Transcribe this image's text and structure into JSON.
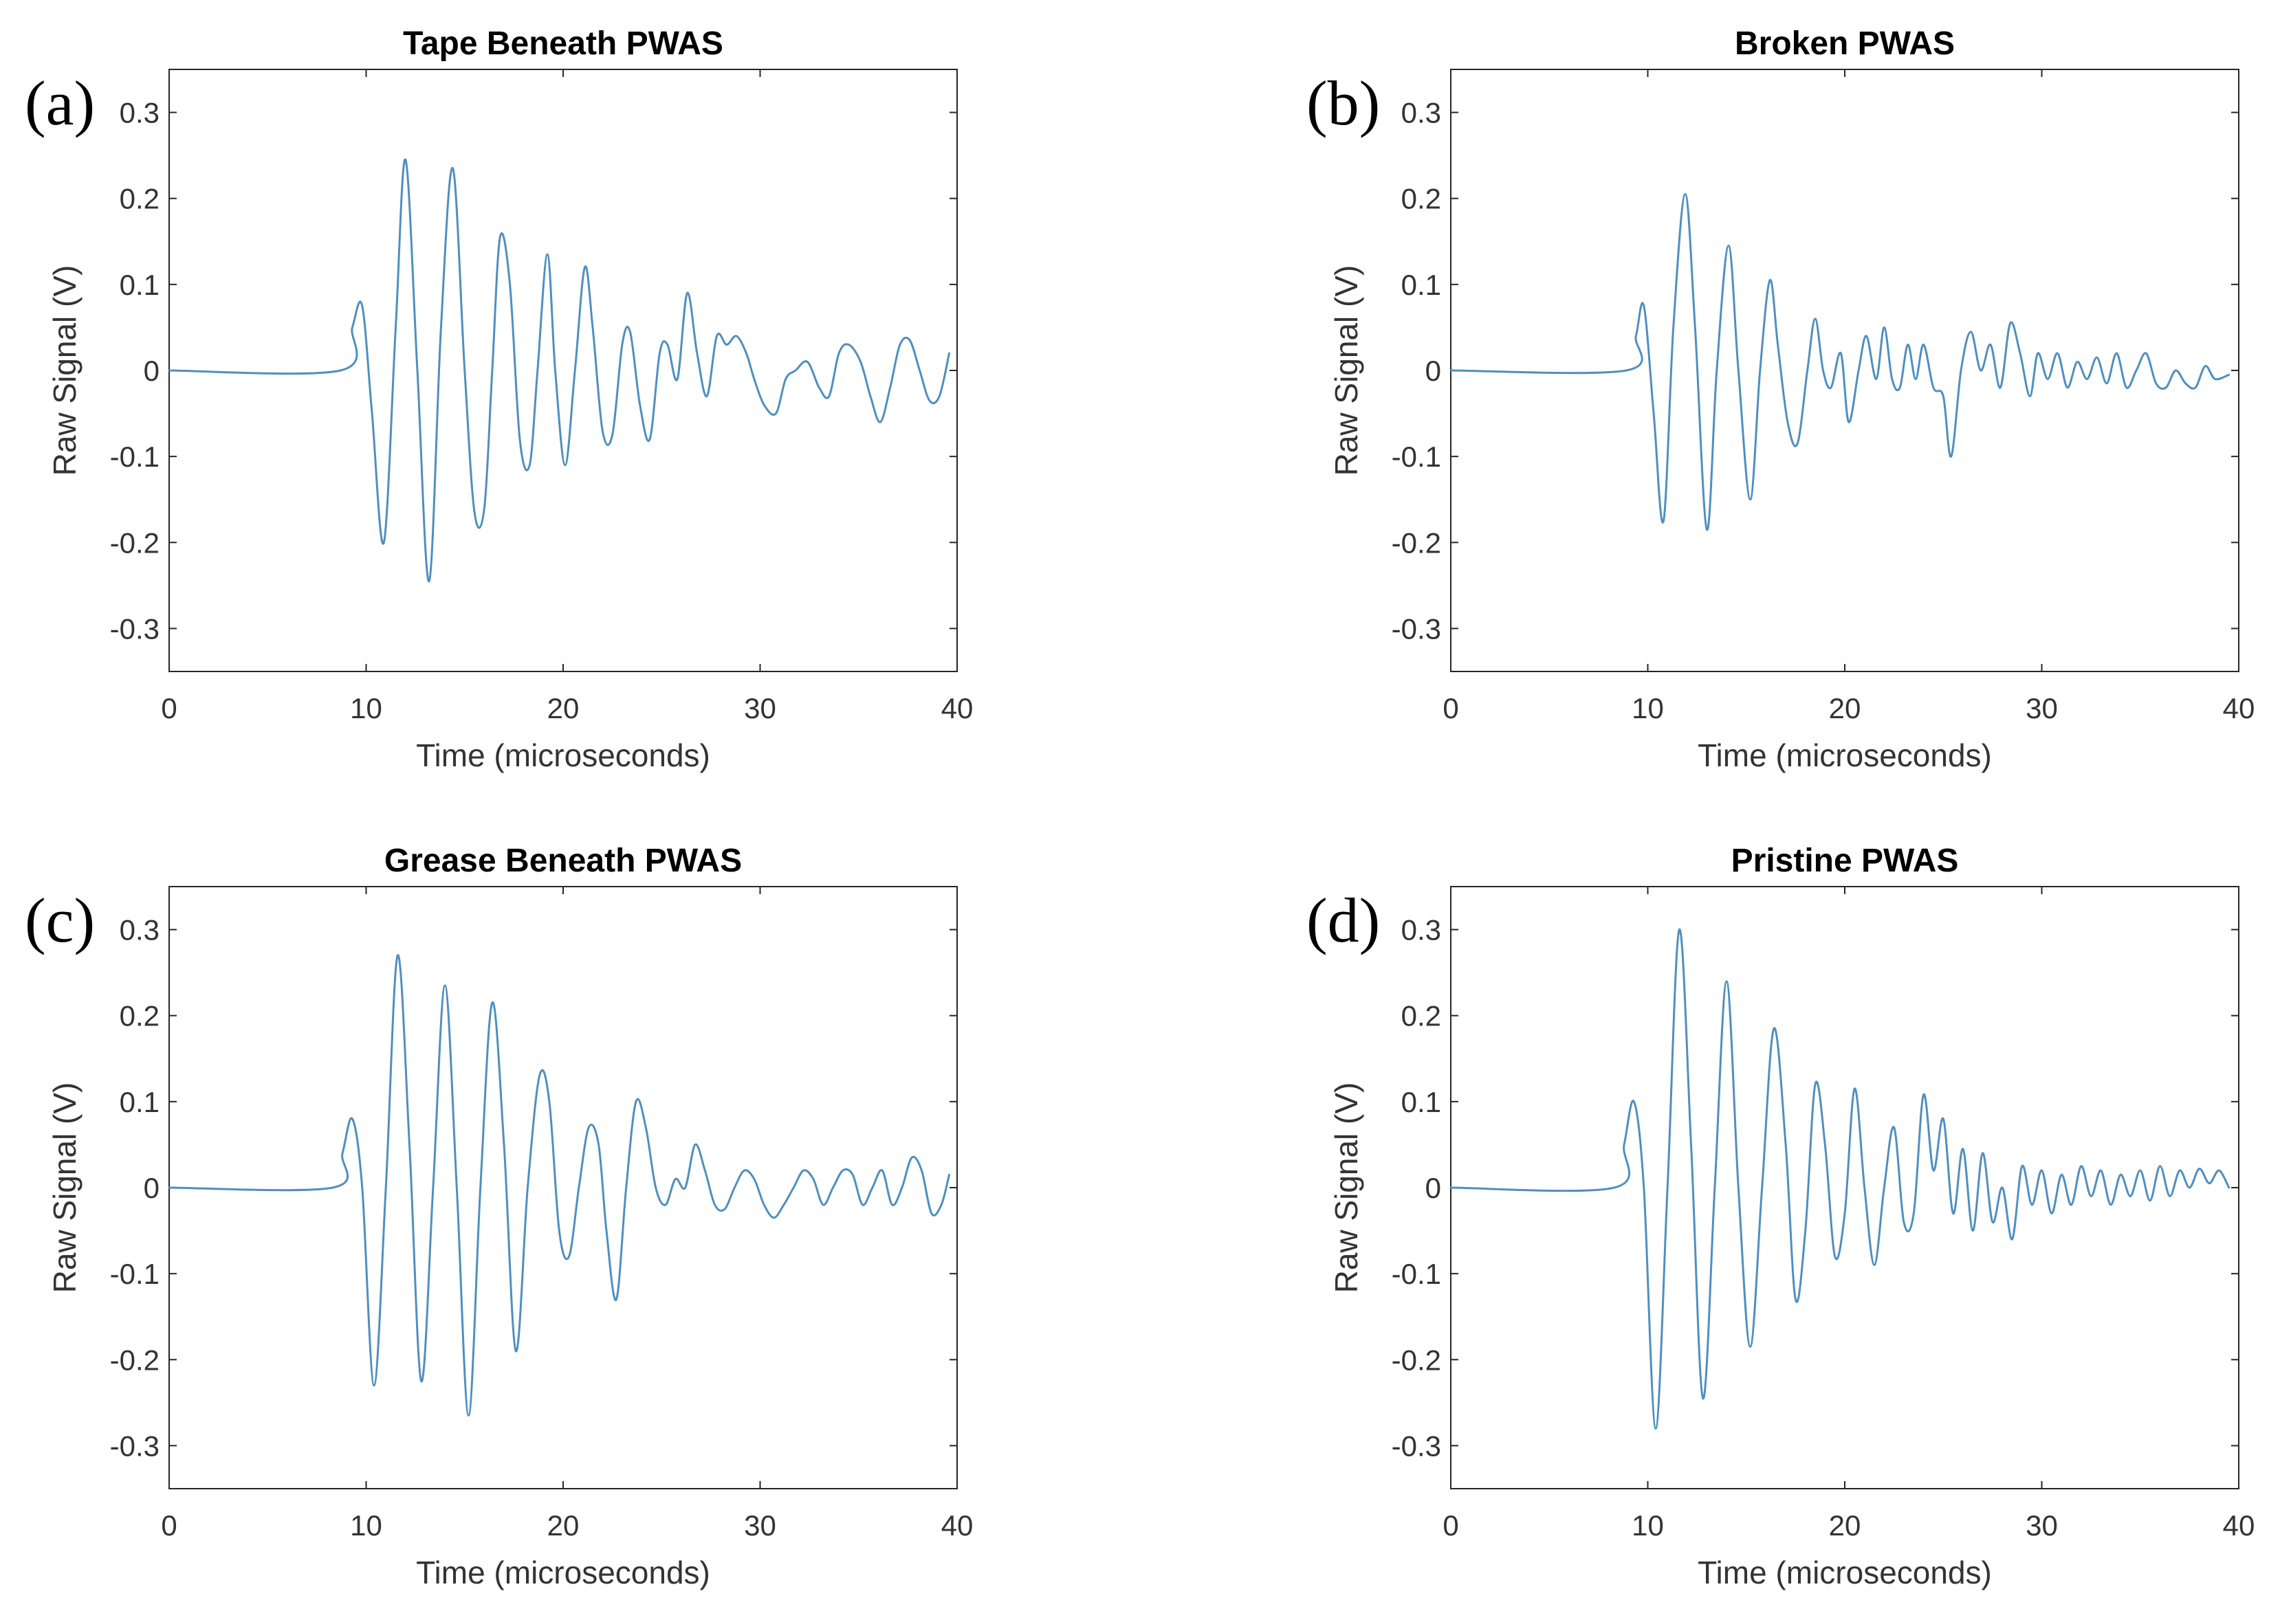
{
  "figure": {
    "colors": {
      "signal": "#4f8fbf",
      "axis": "#262626",
      "text": "#333333",
      "title": "#000000",
      "letter": "#000000"
    }
  },
  "chart_data": [
    {
      "type": "line",
      "panel_label": "(a)",
      "title": "Tape Beneath PWAS",
      "xlabel": "Time (microseconds)",
      "ylabel": "Raw Signal (V)",
      "xlim": [
        0,
        40
      ],
      "ylim": [
        -0.35,
        0.35
      ],
      "x_tick_labels": [
        "0",
        "10",
        "20",
        "30",
        "40"
      ],
      "y_tick_labels": [
        "0.3",
        "0.2",
        "0.1",
        "0",
        "-0.1",
        "-0.2",
        "-0.3"
      ],
      "grid": false,
      "series": [
        {
          "name": "Raw Signal",
          "x": [
            0,
            8.7,
            9.3,
            9.8,
            10.3,
            10.9,
            11.5,
            12.0,
            12.6,
            13.2,
            13.8,
            14.4,
            15.0,
            15.5,
            16.0,
            16.4,
            16.8,
            17.3,
            17.8,
            18.3,
            18.7,
            19.2,
            19.6,
            20.1,
            20.6,
            21.1,
            21.5,
            22.0,
            22.5,
            23.0,
            23.4,
            23.9,
            24.4,
            24.9,
            25.3,
            25.8,
            26.3,
            26.8,
            27.3,
            27.8,
            28.3,
            28.8,
            29.3,
            29.7,
            30.2,
            30.8,
            31.3,
            31.8,
            32.4,
            33.0,
            33.5,
            34.0,
            34.5,
            35.1,
            35.6,
            36.1,
            36.6,
            37.1,
            37.6,
            38.1,
            38.6,
            39.1,
            39.6
          ],
          "y": [
            0.0,
            0.0,
            0.05,
            0.075,
            -0.05,
            -0.2,
            0.05,
            0.245,
            0.0,
            -0.245,
            0.05,
            0.235,
            0.0,
            -0.165,
            -0.16,
            0.0,
            0.155,
            0.1,
            -0.08,
            -0.11,
            0.0,
            0.135,
            0.0,
            -0.11,
            0.0,
            0.12,
            0.05,
            -0.07,
            -0.075,
            0.03,
            0.045,
            -0.04,
            -0.08,
            0.02,
            0.03,
            -0.01,
            0.09,
            0.02,
            -0.03,
            0.04,
            0.03,
            0.04,
            0.02,
            -0.01,
            -0.04,
            -0.05,
            -0.01,
            0.0,
            0.01,
            -0.02,
            -0.03,
            0.02,
            0.03,
            0.01,
            -0.03,
            -0.06,
            -0.02,
            0.03,
            0.035,
            0.0,
            -0.035,
            -0.03,
            0.02
          ]
        }
      ]
    },
    {
      "type": "line",
      "panel_label": "(b)",
      "title": "Broken PWAS",
      "xlabel": "Time (microseconds)",
      "ylabel": "Raw Signal (V)",
      "xlim": [
        0,
        40
      ],
      "ylim": [
        -0.35,
        0.35
      ],
      "x_tick_labels": [
        "0",
        "10",
        "20",
        "30",
        "40"
      ],
      "y_tick_labels": [
        "0.3",
        "0.2",
        "0.1",
        "0",
        "-0.1",
        "-0.2",
        "-0.3"
      ],
      "grid": false,
      "series": [
        {
          "name": "Raw Signal",
          "x": [
            0,
            8.9,
            9.4,
            9.8,
            10.3,
            10.8,
            11.3,
            11.9,
            12.4,
            13.0,
            13.5,
            14.1,
            14.6,
            15.2,
            15.7,
            16.2,
            16.6,
            17.1,
            17.6,
            18.1,
            18.5,
            18.9,
            19.3,
            19.8,
            20.2,
            20.7,
            21.1,
            21.6,
            22.0,
            22.4,
            22.8,
            23.2,
            23.6,
            24.0,
            24.5,
            25.0,
            25.4,
            25.9,
            26.4,
            26.9,
            27.4,
            27.9,
            28.4,
            28.9,
            29.4,
            29.8,
            30.3,
            30.8,
            31.3,
            31.8,
            32.3,
            32.8,
            33.3,
            33.8,
            34.3,
            34.8,
            35.3,
            35.8,
            36.3,
            36.8,
            37.3,
            37.8,
            38.3,
            38.8,
            39.5
          ],
          "y": [
            0.0,
            0.0,
            0.04,
            0.075,
            -0.05,
            -0.175,
            0.05,
            0.205,
            0.05,
            -0.185,
            0.0,
            0.145,
            0.0,
            -0.15,
            0.0,
            0.105,
            0.03,
            -0.06,
            -0.085,
            0.0,
            0.06,
            0.0,
            -0.02,
            0.02,
            -0.06,
            0.0,
            0.04,
            -0.01,
            0.05,
            -0.01,
            -0.02,
            0.03,
            -0.01,
            0.03,
            -0.02,
            -0.03,
            -0.1,
            0.0,
            0.045,
            0.0,
            0.03,
            -0.02,
            0.055,
            0.02,
            -0.03,
            0.02,
            -0.01,
            0.02,
            -0.02,
            0.01,
            -0.01,
            0.015,
            -0.015,
            0.02,
            -0.02,
            0.0,
            0.02,
            -0.015,
            -0.02,
            0.0,
            -0.015,
            -0.02,
            0.005,
            -0.01,
            -0.005
          ]
        }
      ]
    },
    {
      "type": "line",
      "panel_label": "(c)",
      "title": "Grease Beneath PWAS",
      "xlabel": "Time (microseconds)",
      "ylabel": "Raw Signal (V)",
      "xlim": [
        0,
        40
      ],
      "ylim": [
        -0.35,
        0.35
      ],
      "x_tick_labels": [
        "0",
        "10",
        "20",
        "30",
        "40"
      ],
      "y_tick_labels": [
        "0.3",
        "0.2",
        "0.1",
        "0",
        "-0.1",
        "-0.2",
        "-0.3"
      ],
      "grid": false,
      "series": [
        {
          "name": "Raw Signal",
          "x": [
            0,
            8.3,
            8.8,
            9.3,
            9.8,
            10.4,
            11.0,
            11.6,
            12.2,
            12.8,
            13.4,
            14.0,
            14.6,
            15.2,
            15.8,
            16.4,
            17.0,
            17.6,
            18.2,
            18.8,
            19.3,
            19.8,
            20.3,
            20.8,
            21.3,
            21.8,
            22.2,
            22.7,
            23.2,
            23.7,
            24.2,
            24.7,
            25.2,
            25.7,
            26.2,
            26.7,
            27.2,
            27.7,
            28.2,
            28.7,
            29.2,
            29.7,
            30.2,
            30.7,
            31.2,
            31.7,
            32.2,
            32.7,
            33.2,
            33.7,
            34.2,
            34.7,
            35.2,
            35.7,
            36.2,
            36.7,
            37.2,
            37.7,
            38.2,
            38.7,
            39.2,
            39.6
          ],
          "y": [
            0.0,
            0.0,
            0.04,
            0.08,
            0.0,
            -0.23,
            0.0,
            0.27,
            0.05,
            -0.225,
            0.0,
            0.235,
            0.0,
            -0.265,
            0.0,
            0.215,
            0.05,
            -0.19,
            0.0,
            0.13,
            0.1,
            -0.05,
            -0.08,
            0.0,
            0.07,
            0.05,
            -0.05,
            -0.13,
            0.0,
            0.1,
            0.07,
            0.0,
            -0.02,
            0.01,
            0.0,
            0.05,
            0.02,
            -0.02,
            -0.025,
            0.0,
            0.02,
            0.01,
            -0.02,
            -0.035,
            -0.02,
            0.0,
            0.02,
            0.01,
            -0.02,
            0.0,
            0.02,
            0.015,
            -0.02,
            0.0,
            0.02,
            -0.02,
            0.0,
            0.035,
            0.02,
            -0.03,
            -0.02,
            0.015
          ]
        }
      ]
    },
    {
      "type": "line",
      "panel_label": "(d)",
      "title": "Pristine PWAS",
      "xlabel": "Time (microseconds)",
      "ylabel": "Raw Signal (V)",
      "xlim": [
        0,
        40
      ],
      "ylim": [
        -0.35,
        0.35
      ],
      "x_tick_labels": [
        "0",
        "10",
        "20",
        "30",
        "40"
      ],
      "y_tick_labels": [
        "0.3",
        "0.2",
        "0.1",
        "0",
        "-0.1",
        "-0.2",
        "-0.3"
      ],
      "grid": false,
      "series": [
        {
          "name": "Raw Signal",
          "x": [
            0,
            8.3,
            8.8,
            9.3,
            9.8,
            10.4,
            11.0,
            11.6,
            12.2,
            12.8,
            13.4,
            14.0,
            14.6,
            15.2,
            15.8,
            16.4,
            17.0,
            17.5,
            18.0,
            18.5,
            19.0,
            19.5,
            20.0,
            20.5,
            21.0,
            21.5,
            22.0,
            22.5,
            23.0,
            23.5,
            24.0,
            24.5,
            25.0,
            25.5,
            26.0,
            26.5,
            27.0,
            27.5,
            28.0,
            28.5,
            29.0,
            29.5,
            30.0,
            30.5,
            31.0,
            31.5,
            32.0,
            32.5,
            33.0,
            33.5,
            34.0,
            34.5,
            35.0,
            35.5,
            36.0,
            36.5,
            37.0,
            37.5,
            38.0,
            38.5,
            39.0,
            39.5
          ],
          "y": [
            0.0,
            0.0,
            0.05,
            0.1,
            0.0,
            -0.28,
            0.0,
            0.3,
            0.05,
            -0.245,
            0.0,
            0.24,
            0.0,
            -0.185,
            0.0,
            0.185,
            0.05,
            -0.13,
            -0.05,
            0.12,
            0.05,
            -0.08,
            -0.03,
            0.115,
            0.0,
            -0.09,
            0.0,
            0.07,
            -0.04,
            -0.03,
            0.108,
            0.02,
            0.08,
            -0.03,
            0.045,
            -0.05,
            0.04,
            -0.04,
            0.0,
            -0.06,
            0.025,
            -0.02,
            0.02,
            -0.03,
            0.015,
            -0.02,
            0.025,
            -0.01,
            0.02,
            -0.02,
            0.015,
            -0.01,
            0.02,
            -0.015,
            0.025,
            -0.01,
            0.02,
            0.0,
            0.022,
            0.005,
            0.02,
            0.0
          ]
        }
      ]
    }
  ]
}
